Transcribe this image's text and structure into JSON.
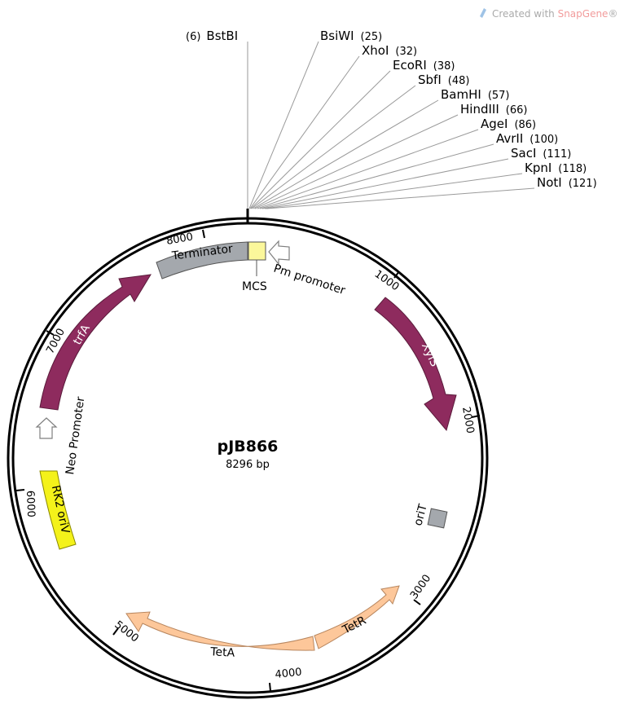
{
  "watermark": {
    "prefix": "Created with ",
    "brand": "SnapGene",
    "suffix": "®"
  },
  "plasmid": {
    "name": "pJB866",
    "size_label": "8296 bp"
  },
  "colors": {
    "backbone": "#000000",
    "trfA": "#8e2b5e",
    "XylS": "#8e2b5e",
    "Terminator": "#a4a8ad",
    "MCS": "#fbf79b",
    "oriT": "#a4a8ad",
    "TetA": "#fdc79a",
    "TetR": "#fdc79a",
    "RK2_oriV": "#f4f21a",
    "promoter_outline": "#7f7f7f"
  },
  "sites": [
    {
      "name": "BstBI",
      "pos": "(6)"
    },
    {
      "name": "BsiWI",
      "pos": "(25)"
    },
    {
      "name": "XhoI",
      "pos": "(32)"
    },
    {
      "name": "EcoRI",
      "pos": "(38)"
    },
    {
      "name": "SbfI",
      "pos": "(48)"
    },
    {
      "name": "BamHI",
      "pos": "(57)"
    },
    {
      "name": "HindIII",
      "pos": "(66)"
    },
    {
      "name": "AgeI",
      "pos": "(86)"
    },
    {
      "name": "AvrII",
      "pos": "(100)"
    },
    {
      "name": "SacI",
      "pos": "(111)"
    },
    {
      "name": "KpnI",
      "pos": "(118)"
    },
    {
      "name": "NotI",
      "pos": "(121)"
    }
  ],
  "ticks": [
    "1000",
    "2000",
    "3000",
    "4000",
    "5000",
    "6000",
    "7000",
    "8000"
  ],
  "features": {
    "xyls": "XylS",
    "pm_promoter": "Pm promoter",
    "mcs": "MCS",
    "terminator": "Terminator",
    "trfa": "trfA",
    "neo_promoter": "Neo Promoter",
    "rk2_oriv": "RK2 oriV",
    "orit": "oriT",
    "teta": "TetA",
    "tetr": "TetR"
  }
}
